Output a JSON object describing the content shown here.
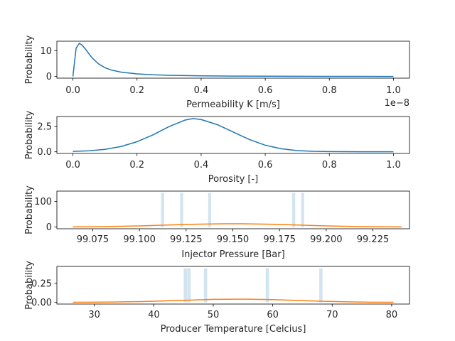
{
  "chart_data": [
    {
      "type": "line",
      "xlabel": "Permeability K [m/s]",
      "ylabel": "Probability",
      "x_offset_label": "1e−8",
      "xlim": [
        -0.05,
        1.05
      ],
      "ylim": [
        -0.65,
        13.7
      ],
      "xticks": [
        0.0,
        0.2,
        0.4,
        0.6,
        0.8,
        1.0
      ],
      "xtick_labels": [
        "0.0",
        "0.2",
        "0.4",
        "0.6",
        "0.8",
        "1.0"
      ],
      "yticks": [
        0,
        10
      ],
      "ytick_labels": [
        "0",
        "10"
      ],
      "series": [
        {
          "color": "#1f77b4",
          "x": [
            0.0,
            0.01,
            0.02,
            0.03,
            0.04,
            0.05,
            0.06,
            0.08,
            0.1,
            0.12,
            0.15,
            0.2,
            0.25,
            0.3,
            0.4,
            0.5,
            0.6,
            0.7,
            0.8,
            0.9,
            1.0
          ],
          "y": [
            0.0,
            11.0,
            12.9,
            12.0,
            10.5,
            8.8,
            7.2,
            4.9,
            3.4,
            2.5,
            1.7,
            1.0,
            0.65,
            0.45,
            0.25,
            0.15,
            0.1,
            0.07,
            0.05,
            0.03,
            0.02
          ]
        }
      ]
    },
    {
      "type": "line",
      "xlabel": "Porosity [-]",
      "ylabel": "Probability",
      "xlim": [
        -0.05,
        1.05
      ],
      "ylim": [
        -0.165,
        3.5
      ],
      "xticks": [
        0.0,
        0.2,
        0.4,
        0.6,
        0.8,
        1.0
      ],
      "xtick_labels": [
        "0.0",
        "0.2",
        "0.4",
        "0.6",
        "0.8",
        "1.0"
      ],
      "yticks": [
        0.0,
        2.5
      ],
      "ytick_labels": [
        "0.0",
        "2.5"
      ],
      "series": [
        {
          "color": "#1f77b4",
          "x": [
            0.0,
            0.05,
            0.1,
            0.15,
            0.2,
            0.25,
            0.3,
            0.35,
            0.375,
            0.4,
            0.45,
            0.5,
            0.55,
            0.6,
            0.65,
            0.7,
            0.75,
            0.8,
            0.85,
            0.9,
            0.95,
            1.0
          ],
          "y": [
            0.04,
            0.1,
            0.24,
            0.52,
            1.0,
            1.68,
            2.5,
            3.15,
            3.3,
            3.2,
            2.7,
            1.96,
            1.22,
            0.65,
            0.3,
            0.12,
            0.05,
            0.02,
            0.01,
            0.0,
            0.0,
            0.0
          ]
        }
      ]
    },
    {
      "type": "bar+line",
      "xlabel": "Injector Pressure [Bar]",
      "ylabel": "Probability",
      "xlim": [
        99.0558,
        99.2446
      ],
      "ylim": [
        -6.7,
        140.5
      ],
      "xticks": [
        99.075,
        99.1,
        99.125,
        99.15,
        99.175,
        99.2,
        99.225
      ],
      "xtick_labels": [
        "99.075",
        "99.100",
        "99.125",
        "99.150",
        "99.175",
        "99.200",
        "99.225"
      ],
      "yticks": [
        0,
        100
      ],
      "ytick_labels": [
        "0",
        "100"
      ],
      "bars": {
        "color": "#1f77b4",
        "opacity": 0.2,
        "width": 0.0016,
        "x": [
          99.1124,
          99.1226,
          99.1376,
          99.1826,
          99.1874
        ],
        "values": [
          133.5,
          133.5,
          133.5,
          133.5,
          133.5
        ]
      },
      "series": [
        {
          "color": "#ff7f0e",
          "x": [
            99.0643,
            99.08,
            99.1,
            99.115,
            99.13,
            99.145,
            99.155,
            99.17,
            99.185,
            99.2,
            99.22,
            99.2404
          ],
          "y": [
            0.5,
            1.5,
            4.5,
            8.0,
            11.0,
            12.6,
            12.6,
            11.0,
            8.0,
            4.5,
            1.6,
            0.5
          ]
        }
      ]
    },
    {
      "type": "bar+line",
      "xlabel": "Producer Temperature [Celcius]",
      "ylabel": "Probability",
      "xlim": [
        23.7,
        83.0
      ],
      "ylim": [
        -0.022,
        0.475
      ],
      "xticks": [
        30,
        40,
        50,
        60,
        70,
        80
      ],
      "xtick_labels": [
        "30",
        "40",
        "50",
        "60",
        "70",
        "80"
      ],
      "yticks": [
        0.0,
        0.25
      ],
      "ytick_labels": [
        "0.00",
        "0.25"
      ],
      "bars": {
        "color": "#1f77b4",
        "opacity": 0.2,
        "width": 0.55,
        "x": [
          45.3,
          45.9,
          48.7,
          59.1,
          68.1
        ],
        "values": [
          0.45,
          0.45,
          0.45,
          0.45,
          0.45
        ]
      },
      "series": [
        {
          "color": "#ff7f0e",
          "x": [
            26.4,
            32,
            38,
            42,
            46,
            50,
            54,
            56,
            60,
            64,
            68,
            72,
            76,
            80.3
          ],
          "y": [
            0.001,
            0.004,
            0.011,
            0.02,
            0.03,
            0.04,
            0.043,
            0.042,
            0.036,
            0.026,
            0.016,
            0.008,
            0.003,
            0.001
          ]
        }
      ]
    }
  ]
}
